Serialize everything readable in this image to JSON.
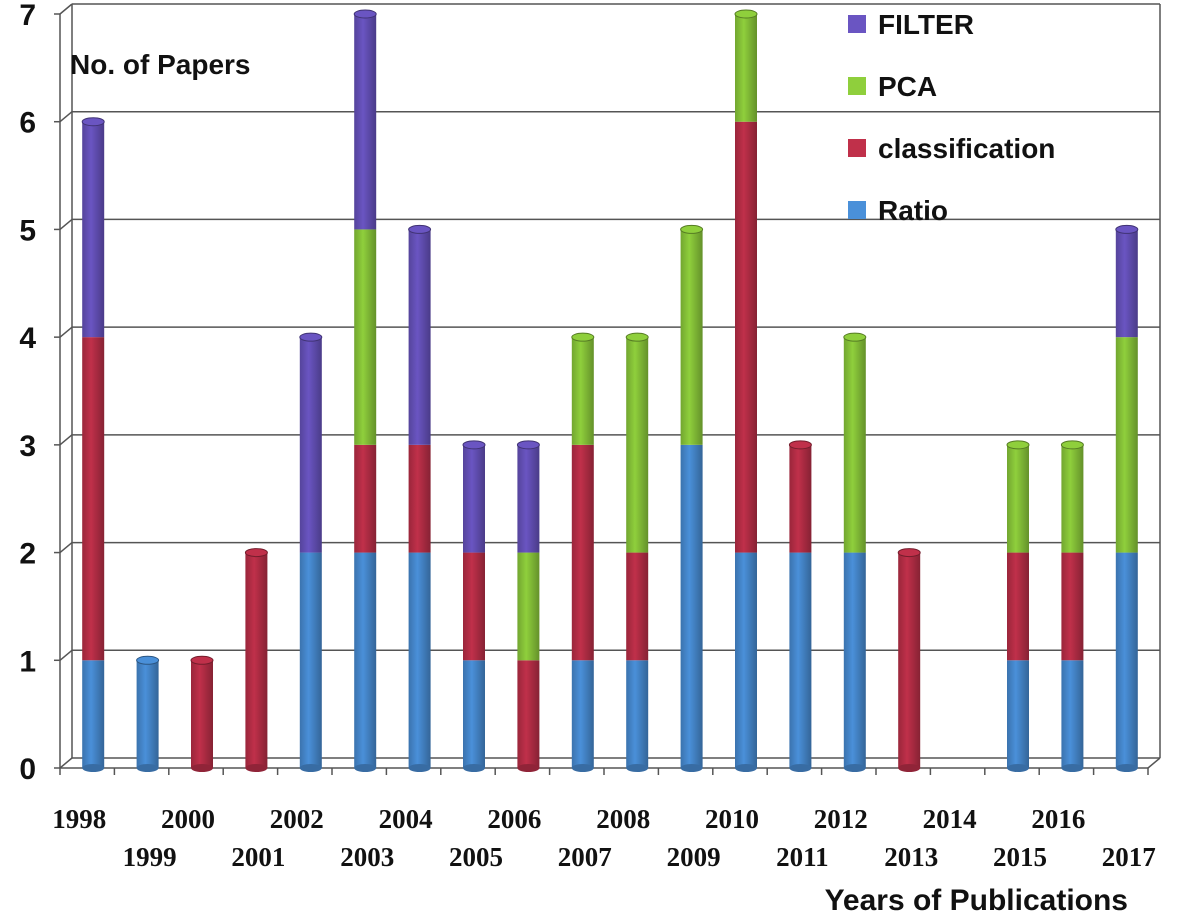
{
  "chart_data": {
    "type": "bar",
    "stacked": true,
    "title": "",
    "ylabel": "No. of Papers",
    "xlabel": "Years of Publications",
    "ylim": [
      0,
      7
    ],
    "yticks": [
      "0",
      "1",
      "2",
      "3",
      "4",
      "5",
      "6",
      "7"
    ],
    "grid": true,
    "legend_position": "top-right",
    "categories": [
      "1998",
      "1999",
      "2000",
      "2001",
      "2002",
      "2003",
      "2004",
      "2005",
      "2006",
      "2007",
      "2008",
      "2009",
      "2010",
      "2011",
      "2012",
      "2013",
      "2014",
      "2015",
      "2016",
      "2017"
    ],
    "series": [
      {
        "name": "Ratio",
        "color": "#4a90d9",
        "values": [
          1,
          1,
          0,
          0,
          2,
          2,
          2,
          1,
          0,
          1,
          1,
          3,
          2,
          2,
          2,
          0,
          0,
          1,
          1,
          2
        ]
      },
      {
        "name": "classification",
        "color": "#c0304a",
        "values": [
          3,
          0,
          1,
          2,
          0,
          1,
          1,
          1,
          1,
          2,
          1,
          0,
          4,
          1,
          0,
          2,
          0,
          1,
          1,
          0
        ]
      },
      {
        "name": "PCA",
        "color": "#8fcf3c",
        "values": [
          0,
          0,
          0,
          0,
          0,
          2,
          0,
          0,
          1,
          1,
          2,
          2,
          1,
          0,
          2,
          0,
          0,
          1,
          1,
          2
        ]
      },
      {
        "name": "FILTER",
        "color": "#6a55c2",
        "values": [
          2,
          0,
          0,
          0,
          2,
          2,
          2,
          1,
          1,
          0,
          0,
          0,
          0,
          0,
          0,
          0,
          0,
          0,
          0,
          1
        ]
      }
    ],
    "legend_order": [
      "FILTER",
      "PCA",
      "classification",
      "Ratio"
    ]
  }
}
